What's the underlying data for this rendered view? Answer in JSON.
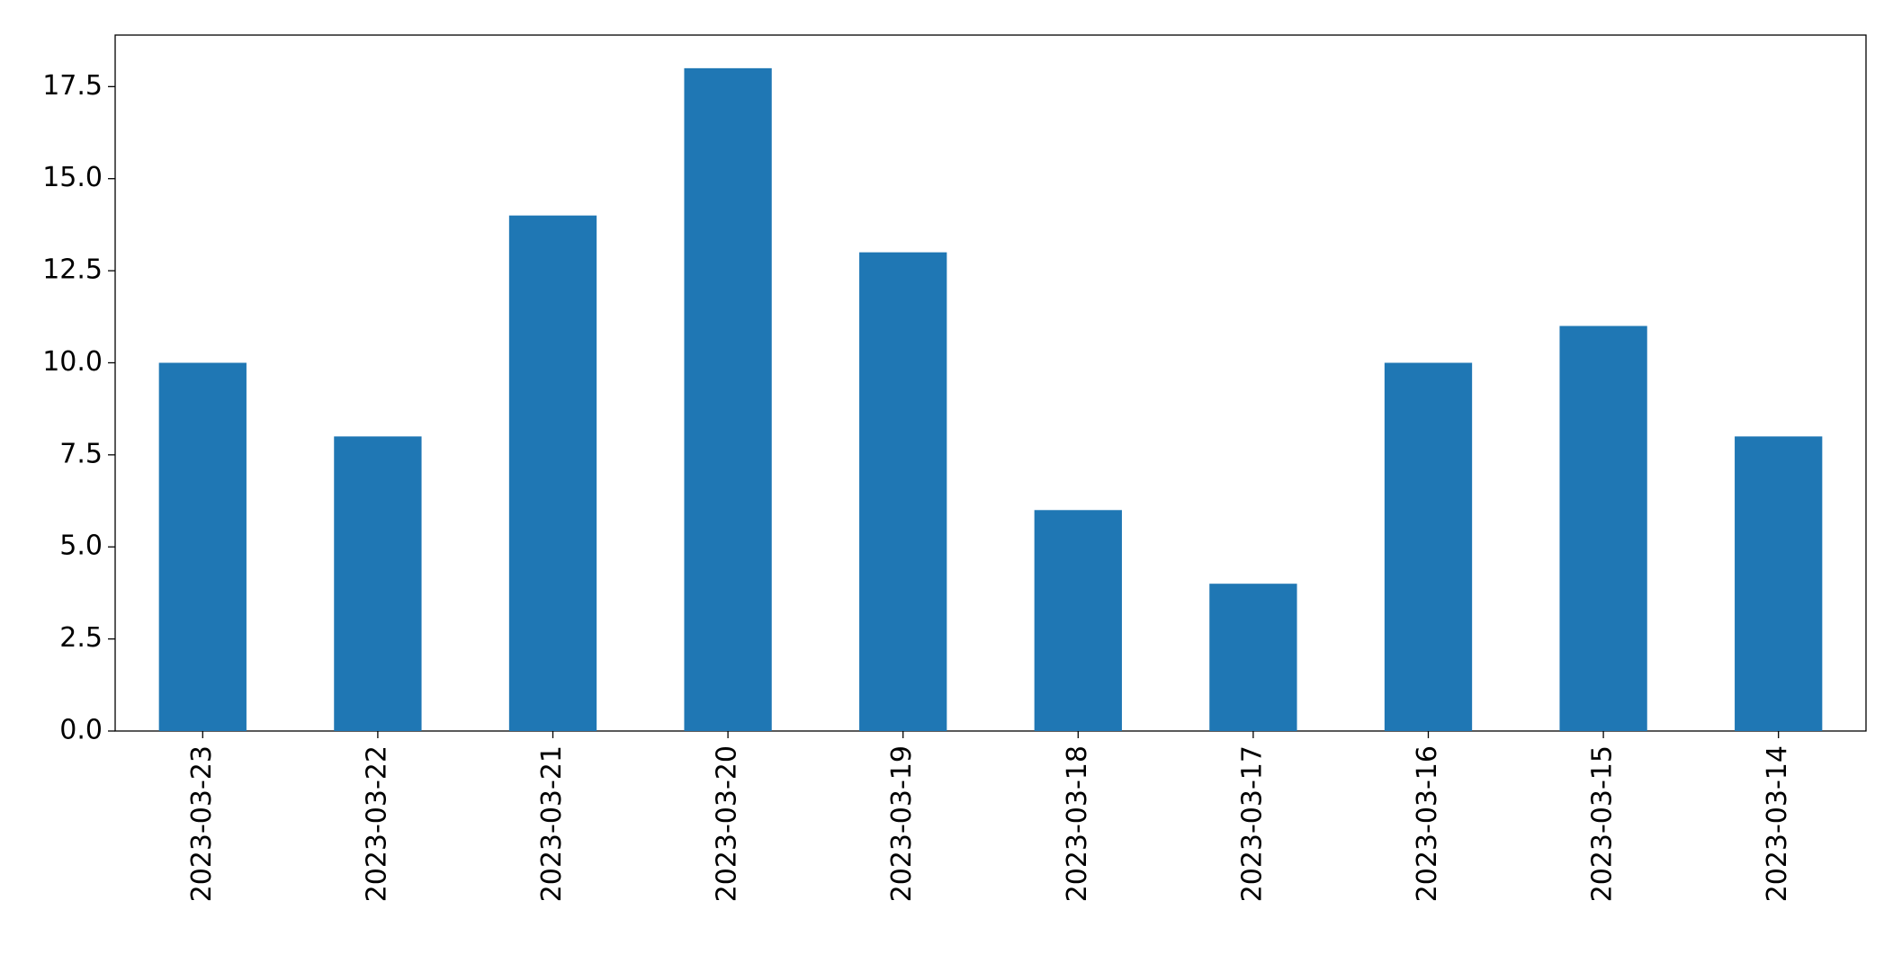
{
  "chart_data": {
    "type": "bar",
    "categories": [
      "2023-03-23",
      "2023-03-22",
      "2023-03-21",
      "2023-03-20",
      "2023-03-19",
      "2023-03-18",
      "2023-03-17",
      "2023-03-16",
      "2023-03-15",
      "2023-03-14"
    ],
    "values": [
      10,
      8,
      14,
      18,
      13,
      6,
      4,
      10,
      11,
      8
    ],
    "color": "#1f77b4",
    "ylim": [
      0,
      18.9
    ],
    "yticks": [
      {
        "value": 0,
        "label": "0.0"
      },
      2.5,
      {
        "value": 5,
        "label": "5.0"
      },
      7.5,
      {
        "value": 10,
        "label": "10.0"
      },
      12.5,
      {
        "value": 15,
        "label": "15.0"
      },
      17.5
    ],
    "grid": false
  }
}
